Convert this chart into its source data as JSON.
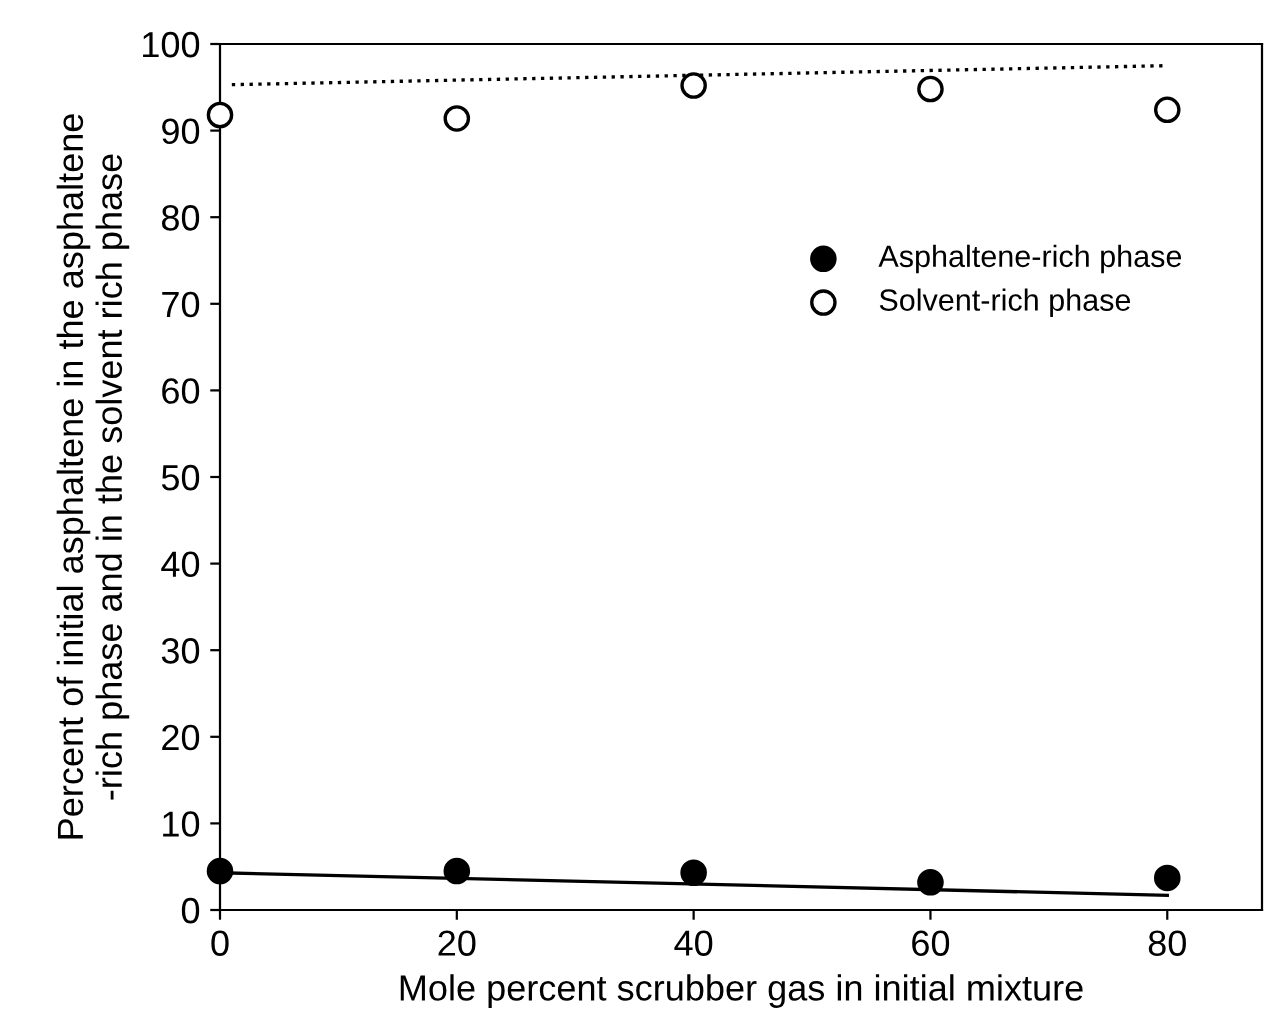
{
  "chart_data": {
    "type": "scatter",
    "xlabel": "Mole percent scrubber gas in initial mixture",
    "ylabel": "Percent of initial asphaltene in the asphaltene\n-rich phase and in the solvent rich phase",
    "x": [
      0,
      20,
      40,
      60,
      80
    ],
    "series": [
      {
        "name": "Asphaltene-rich phase",
        "color": "#000000",
        "values": [
          4.5,
          4.5,
          4.3,
          3.2,
          3.7
        ],
        "marker": "circle"
      },
      {
        "name": "Solvent-rich phase",
        "color": "#ffffff",
        "values": [
          91.8,
          91.4,
          95.2,
          94.8,
          92.4
        ],
        "marker": "circle"
      },
      {
        "type": "line",
        "x": [
          0,
          80
        ],
        "values": [
          4.3,
          1.7
        ],
        "color": "#000000",
        "line_style": "solid",
        "marker": "none"
      },
      {
        "type": "line",
        "x": [
          1,
          80
        ],
        "values": [
          95.3,
          97.5
        ],
        "color": "#000000",
        "line_style": "dotted",
        "marker": "none"
      }
    ],
    "xlim": [
      0,
      88
    ],
    "xticks": [
      0,
      20,
      40,
      60,
      80
    ],
    "ylim": [
      0,
      100
    ],
    "yticks": [
      0,
      10,
      20,
      30,
      40,
      50,
      60,
      70,
      80,
      90,
      100
    ],
    "grid": false,
    "legend": "top right"
  }
}
